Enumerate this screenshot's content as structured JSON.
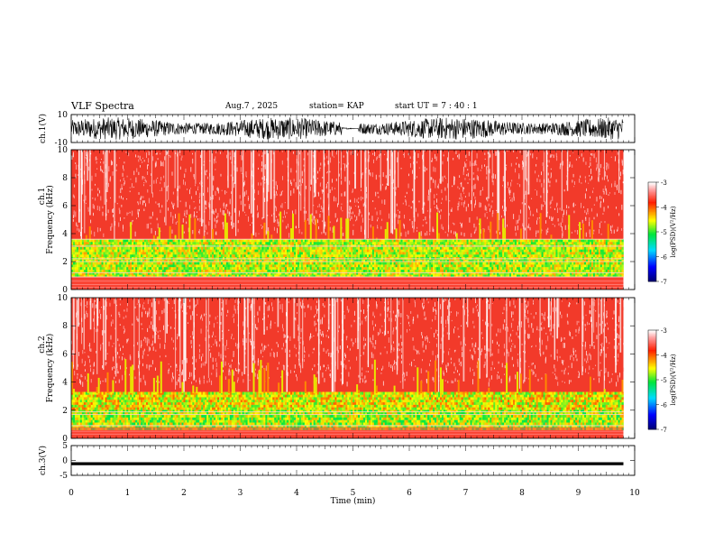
{
  "header": {
    "title": "VLF Spectra",
    "date": "Aug.7 , 2025",
    "station": "station= KAP",
    "start_ut": "start UT = 7 : 40 : 1"
  },
  "chart_data": [
    {
      "type": "line",
      "panel": "ch1-waveform",
      "ylabel": "ch.1(V)",
      "ylim": [
        -10,
        10
      ],
      "y_ticks": [
        "10",
        "-10"
      ],
      "description_of_signal": "noisy voltage oscillating between about -10 and 10 V",
      "x_range_min": [
        0,
        9.8
      ]
    },
    {
      "type": "heatmap",
      "panel": "ch1-spectrogram",
      "ylabel": "ch.1 Frequency (kHz)",
      "ylim": [
        0,
        10
      ],
      "y_ticks": [
        "0",
        "2",
        "4",
        "6",
        "8",
        "10"
      ],
      "x_range_min": [
        0,
        9.8
      ],
      "colorbar": {
        "label": "log(PSD)(V²/Hz)",
        "ticks": [
          "-3",
          "-4",
          "-5",
          "-6",
          "-7"
        ],
        "range": [
          -7,
          -3
        ]
      }
    },
    {
      "type": "heatmap",
      "panel": "ch2-spectrogram",
      "ylabel": "ch.2 Frequency (kHz)",
      "ylim": [
        0,
        10
      ],
      "y_ticks": [
        "0",
        "2",
        "4",
        "6",
        "8",
        "10"
      ],
      "x_range_min": [
        0,
        9.8
      ],
      "colorbar": {
        "label": "log(PSD)(V²/Hz)",
        "ticks": [
          "-3",
          "-4",
          "-5",
          "-6",
          "-7"
        ],
        "range": [
          -7,
          -3
        ]
      }
    },
    {
      "type": "line",
      "panel": "ch3-waveform",
      "ylabel": "ch.3(V)",
      "ylim": [
        -5,
        5
      ],
      "y_ticks": [
        "5",
        "0",
        "-5"
      ],
      "values_note": "nearly constant near -1 V",
      "x_range_min": [
        0,
        9.8
      ]
    }
  ],
  "x_axis": {
    "label": "Time (min)",
    "ticks": [
      "0",
      "1",
      "2",
      "3",
      "4",
      "5",
      "6",
      "7",
      "8",
      "9",
      "10"
    ],
    "range": [
      0,
      10
    ]
  }
}
